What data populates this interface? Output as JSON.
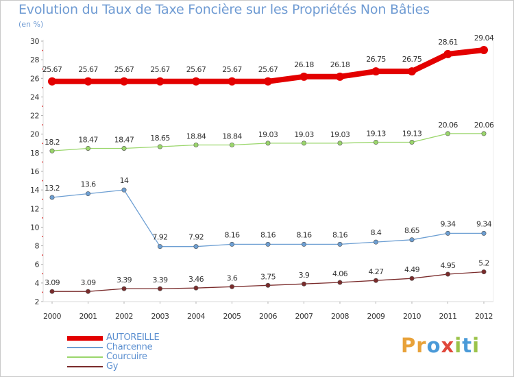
{
  "chart_data": {
    "type": "line",
    "title": "Evolution du Taux de Taxe Foncière sur les Propriétés Non Bâties",
    "ylabel": "(en %)",
    "xlabel": "",
    "categories": [
      "2000",
      "2001",
      "2002",
      "2003",
      "2004",
      "2005",
      "2006",
      "2007",
      "2008",
      "2009",
      "2010",
      "2011",
      "2012"
    ],
    "y_ticks": [
      "2",
      "4",
      "6",
      "8",
      "10",
      "12",
      "14",
      "16",
      "18",
      "20",
      "22",
      "24",
      "26",
      "28",
      "30"
    ],
    "ylim": [
      2,
      30
    ],
    "grid": false,
    "legend_position": "bottom-left",
    "series": [
      {
        "name": "AUTOREILLE",
        "color": "#e30000",
        "values": [
          25.67,
          25.67,
          25.67,
          25.67,
          25.67,
          25.67,
          25.67,
          26.18,
          26.18,
          26.75,
          26.75,
          28.61,
          29.04
        ],
        "labels": [
          "25.67",
          "25.67",
          "25.67",
          "25.67",
          "25.67",
          "25.67",
          "25.67",
          "26.18",
          "26.18",
          "26.75",
          "26.75",
          "28.61",
          "29.04"
        ]
      },
      {
        "name": "Charcenne",
        "color": "#6d9fd3",
        "values": [
          13.2,
          13.6,
          14,
          7.92,
          7.92,
          8.16,
          8.16,
          8.16,
          8.16,
          8.4,
          8.65,
          9.34,
          9.34
        ],
        "labels": [
          "13.2",
          "13.6",
          "14",
          "7.92",
          "7.92",
          "8.16",
          "8.16",
          "8.16",
          "8.16",
          "8.4",
          "8.65",
          "9.34",
          "9.34"
        ]
      },
      {
        "name": "Courcuire",
        "color": "#9ad66b",
        "values": [
          18.2,
          18.47,
          18.47,
          18.65,
          18.84,
          18.84,
          19.03,
          19.03,
          19.03,
          19.13,
          19.13,
          20.06,
          20.06
        ],
        "labels": [
          "18.2",
          "18.47",
          "18.47",
          "18.65",
          "18.84",
          "18.84",
          "19.03",
          "19.03",
          "19.03",
          "19.13",
          "19.13",
          "20.06",
          "20.06"
        ]
      },
      {
        "name": "Gy",
        "color": "#7a2b2b",
        "values": [
          3.09,
          3.09,
          3.39,
          3.39,
          3.46,
          3.6,
          3.75,
          3.9,
          4.06,
          4.27,
          4.49,
          4.95,
          5.2
        ],
        "labels": [
          "3.09",
          "3.09",
          "3.39",
          "3.39",
          "3.46",
          "3.6",
          "3.75",
          "3.9",
          "4.06",
          "4.27",
          "4.49",
          "4.95",
          "5.2"
        ]
      }
    ]
  },
  "logo": {
    "text": "Proxiti",
    "letters": [
      "P",
      "r",
      "o",
      "x",
      "i",
      "t",
      "i"
    ],
    "colors": [
      "#e8a23a",
      "#e8a23a",
      "#4a9ad8",
      "#e0483b",
      "#9bc34a",
      "#4a9ad8",
      "#9bc34a"
    ]
  }
}
